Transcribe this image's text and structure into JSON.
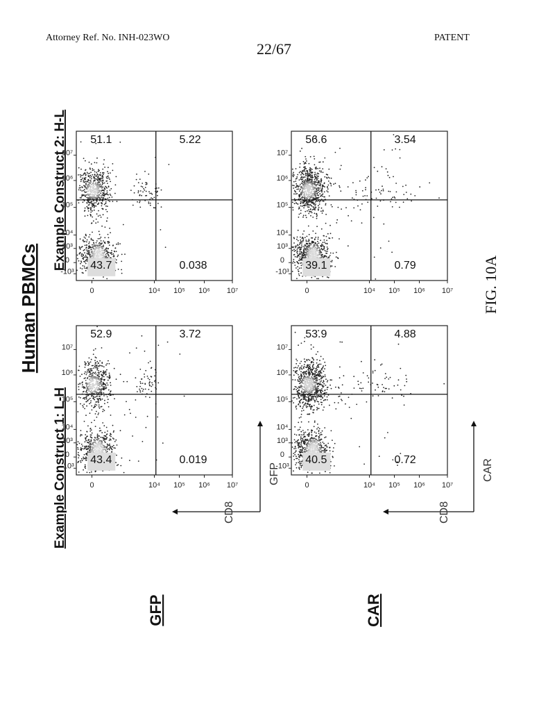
{
  "header": {
    "attorney_ref": "Attorney Ref. No. INH-023WO",
    "page_number": "22/67",
    "patent_label": "PATENT"
  },
  "figure": {
    "title": "Human PBMCs",
    "caption": "FIG. 10A",
    "row_labels": [
      "GFP",
      "CAR"
    ],
    "column_labels": [
      "Example Construct 1: L-H",
      "Example Construct 2: H-L"
    ],
    "y_axis_label": "CD8",
    "x_axis_labels": [
      "GFP",
      "CAR"
    ],
    "tick_labels": [
      "-10³",
      "0",
      "10³",
      "10⁴",
      "10⁵",
      "10⁶",
      "10⁷"
    ],
    "x_tick_labels": [
      "0",
      "10⁴",
      "10⁵",
      "10⁶",
      "10⁷"
    ]
  },
  "chart_data": [
    {
      "type": "scatter",
      "row": "GFP",
      "column": "Example Construct 1: L-H",
      "quadrants": {
        "upper_left": "52.9",
        "upper_right": "3.72",
        "lower_left": "43.4",
        "lower_right": "0.019"
      }
    },
    {
      "type": "scatter",
      "row": "GFP",
      "column": "Example Construct 2: H-L",
      "quadrants": {
        "upper_left": "51.1",
        "upper_right": "5.22",
        "lower_left": "43.7",
        "lower_right": "0.038"
      }
    },
    {
      "type": "scatter",
      "row": "CAR",
      "column": "Example Construct 1: L-H",
      "quadrants": {
        "upper_left": "53.9",
        "upper_right": "4.88",
        "lower_left": "40.5",
        "lower_right": "0.72"
      }
    },
    {
      "type": "scatter",
      "row": "CAR",
      "column": "Example Construct 2: H-L",
      "quadrants": {
        "upper_left": "56.6",
        "upper_right": "3.54",
        "lower_left": "39.1",
        "lower_right": "0.79"
      }
    }
  ]
}
